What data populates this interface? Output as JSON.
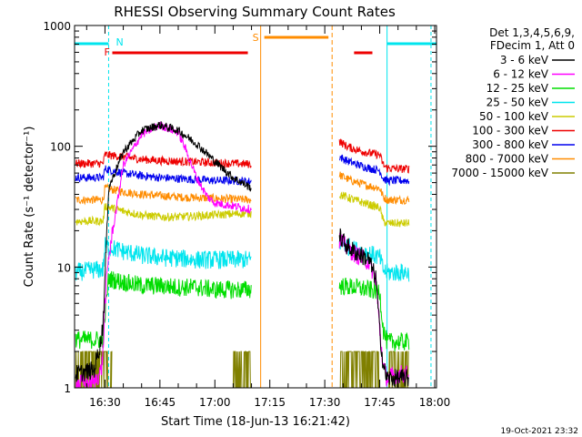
{
  "chart_data": {
    "type": "line",
    "title": "RHESSI Observing Summary Count Rates",
    "xlabel": "Start Time (18-Jun-13 16:21:42)",
    "ylabel": "Count Rate (s⁻¹ detector⁻¹)",
    "yscale": "log",
    "ylim": [
      1,
      1000
    ],
    "xlim_minutes_after_1620": [
      1.7,
      100.5
    ],
    "x_ticks": [
      {
        "label": "16:30",
        "minutes": 10
      },
      {
        "label": "16:45",
        "minutes": 25
      },
      {
        "label": "17:00",
        "minutes": 40
      },
      {
        "label": "17:15",
        "minutes": 55
      },
      {
        "label": "17:30",
        "minutes": 70
      },
      {
        "label": "17:45",
        "minutes": 85
      },
      {
        "label": "18:00",
        "minutes": 100
      }
    ],
    "y_ticks": [
      {
        "label": "1",
        "value": 1
      },
      {
        "label": "10",
        "value": 10
      },
      {
        "label": "100",
        "value": 100
      },
      {
        "label": "1000",
        "value": 1000
      }
    ],
    "legend_header": [
      "Det 1,3,4,5,6,9,",
      "FDecim 1, Att 0"
    ],
    "legend_position": "top-right",
    "timestamp": "19-Oct-2021 23:32",
    "annotations": [
      {
        "label": "N",
        "color": "#00e5ee"
      },
      {
        "label": "F",
        "color": "#ee0000"
      },
      {
        "label": "S",
        "color": "#ff8c00"
      }
    ],
    "flags": {
      "night": {
        "color": "#00e5ee",
        "intervals": [
          [
            1.7,
            11
          ],
          [
            87,
            100.5
          ]
        ]
      },
      "flare": {
        "color": "#ee0000",
        "intervals": [
          [
            12,
            49
          ],
          [
            78,
            83
          ]
        ]
      },
      "saa": {
        "color": "#ff8c00",
        "intervals": [
          [
            52.5,
            72
          ]
        ]
      }
    },
    "gaps": [
      [
        51,
        73
      ]
    ],
    "series": [
      {
        "name": "3 - 6 keV",
        "color": "#000000",
        "segments": [
          {
            "x": [
              2,
              7,
              9,
              9.5,
              10,
              11,
              15,
              20,
              25,
              30,
              35,
              40,
              45,
              50
            ],
            "y": [
              1.3,
              1.4,
              2.5,
              3.6,
              8,
              45,
              90,
              135,
              150,
              135,
              105,
              75,
              55,
              45
            ]
          },
          {
            "x": [
              74,
              76,
              78,
              80,
              82,
              84,
              85,
              86,
              87,
              90,
              93
            ],
            "y": [
              18,
              15,
              13.5,
              12.5,
              11.5,
              8,
              3,
              1.5,
              1.2,
              1.2,
              1.2
            ]
          }
        ]
      },
      {
        "name": "6 - 12 keV",
        "color": "#ff00ff",
        "segments": [
          {
            "x": [
              2,
              7,
              9,
              9.5,
              10,
              11,
              15,
              20,
              25,
              30,
              32,
              35,
              38,
              40,
              45,
              50
            ],
            "y": [
              1.1,
              1.1,
              1.4,
              2,
              5,
              12,
              70,
              125,
              150,
              130,
              95,
              55,
              38,
              34,
              32,
              30
            ]
          },
          {
            "x": [
              74,
              76,
              78,
              80,
              82,
              84,
              85,
              86,
              87,
              90,
              93
            ],
            "y": [
              17,
              14.5,
              13,
              12,
              11,
              8,
              3,
              1.5,
              1.2,
              1.3,
              1.3
            ]
          }
        ]
      },
      {
        "name": "12 - 25 keV",
        "color": "#00dd00",
        "segments": [
          {
            "x": [
              2,
              9.5,
              10,
              11,
              15,
              20,
              25,
              30,
              35,
              40,
              45,
              50
            ],
            "y": [
              2.5,
              2.5,
              4,
              8,
              7.5,
              7,
              7,
              6.8,
              6.8,
              6.5,
              6.5,
              6.5
            ]
          },
          {
            "x": [
              74,
              78,
              82,
              85,
              86,
              87,
              90,
              93
            ],
            "y": [
              7,
              6.8,
              6.5,
              6.3,
              3,
              2.4,
              2.4,
              2.4
            ]
          }
        ]
      },
      {
        "name": "25 - 50 keV",
        "color": "#00e5ee",
        "segments": [
          {
            "x": [
              2,
              7,
              9.5,
              10,
              15,
              20,
              25,
              30,
              35,
              40,
              45,
              50
            ],
            "y": [
              9,
              9.5,
              9.5,
              15,
              13.5,
              12.5,
              12,
              11.8,
              11.5,
              11.5,
              11.5,
              11.5
            ]
          },
          {
            "x": [
              74,
              78,
              82,
              85,
              86,
              87,
              90,
              93
            ],
            "y": [
              16,
              14,
              13,
              12,
              9.5,
              9,
              9,
              9
            ]
          }
        ]
      },
      {
        "name": "50 - 100 keV",
        "color": "#cccc00",
        "segments": [
          {
            "x": [
              2,
              9.5,
              10,
              15,
              20,
              25,
              30,
              35,
              40,
              45,
              50
            ],
            "y": [
              24,
              24,
              32,
              29,
              27,
              26,
              26,
              26.5,
              27,
              27.5,
              28
            ]
          },
          {
            "x": [
              74,
              78,
              82,
              85,
              86,
              87,
              90,
              93
            ],
            "y": [
              40,
              36,
              33,
              31,
              24,
              23,
              23,
              23
            ]
          }
        ]
      },
      {
        "name": "100 - 300 keV",
        "color": "#ee0000",
        "segments": [
          {
            "x": [
              2,
              9.5,
              10,
              15,
              20,
              25,
              30,
              35,
              40,
              45,
              50
            ],
            "y": [
              72,
              72,
              85,
              82,
              78,
              76,
              75,
              74,
              73,
              72,
              71
            ]
          },
          {
            "x": [
              74,
              76,
              78,
              82,
              85,
              86,
              87,
              90,
              93
            ],
            "y": [
              110,
              100,
              95,
              88,
              85,
              70,
              66,
              65,
              65
            ]
          }
        ]
      },
      {
        "name": "300 - 800 keV",
        "color": "#0000ee",
        "segments": [
          {
            "x": [
              2,
              9.5,
              10,
              15,
              20,
              25,
              30,
              35,
              40,
              45,
              50
            ],
            "y": [
              55,
              55,
              65,
              60,
              57,
              55,
              54,
              53,
              52,
              52,
              51
            ]
          },
          {
            "x": [
              74,
              76,
              78,
              82,
              85,
              86,
              87,
              90,
              93
            ],
            "y": [
              82,
              76,
              72,
              66,
              63,
              54,
              52,
              52,
              52
            ]
          }
        ]
      },
      {
        "name": "800 - 7000 keV",
        "color": "#ff8c00",
        "segments": [
          {
            "x": [
              2,
              9.5,
              10,
              15,
              20,
              25,
              30,
              35,
              40,
              45,
              50
            ],
            "y": [
              36,
              36,
              45,
              42,
              40,
              39,
              38,
              37.5,
              37,
              36.5,
              36
            ]
          },
          {
            "x": [
              74,
              76,
              78,
              82,
              85,
              86,
              87,
              90,
              93
            ],
            "y": [
              58,
              54,
              51,
              47,
              45,
              38,
              36,
              36,
              36
            ]
          }
        ]
      },
      {
        "name": "7000 - 15000 keV",
        "color": "#808000",
        "segments": [
          {
            "x": [
              2,
              10,
              11
            ],
            "y": [
              1.6,
              1.6,
              1.2
            ]
          },
          {
            "x": [
              11.5,
              12
            ],
            "y": [
              1.2,
              1.2
            ]
          },
          {
            "x": [
              45,
              50
            ],
            "y": [
              1.6,
              1.6
            ]
          },
          {
            "x": [
              74,
              85
            ],
            "y": [
              1.6,
              1.6
            ]
          },
          {
            "x": [
              87.5,
              93
            ],
            "y": [
              1.6,
              1.6
            ]
          }
        ]
      }
    ]
  }
}
